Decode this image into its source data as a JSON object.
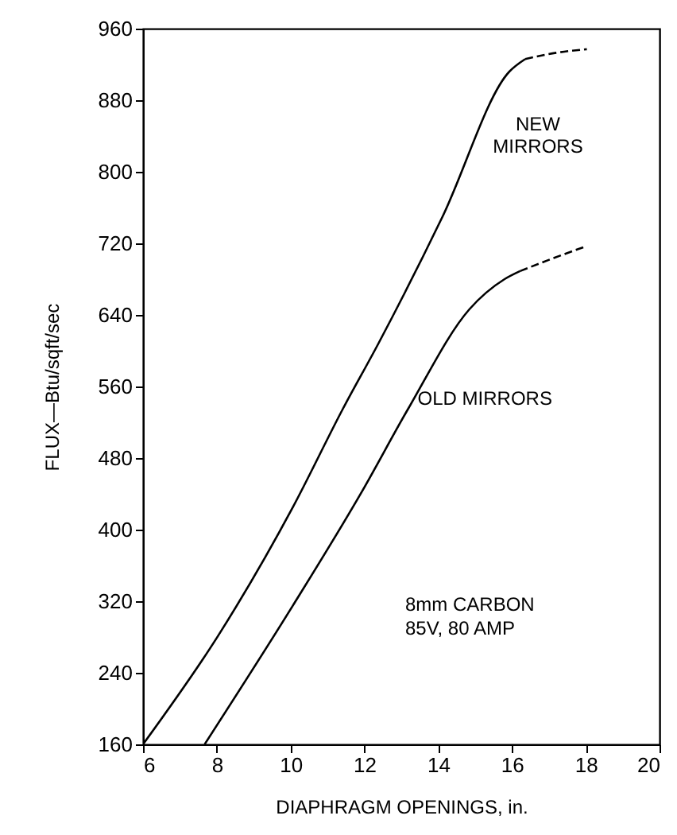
{
  "chart_data": {
    "type": "line",
    "xlabel": "DIAPHRAGM OPENINGS, in.",
    "ylabel": "FLUX—Btu/sqft/sec",
    "xlim": [
      6,
      20
    ],
    "xticks": [
      6,
      8,
      10,
      12,
      14,
      16,
      18,
      20
    ],
    "ylim": [
      160,
      960
    ],
    "yticks": [
      160,
      240,
      320,
      400,
      480,
      560,
      640,
      720,
      800,
      880,
      960
    ],
    "grid": false,
    "marker": "none",
    "annotations": [
      "8mm CARBON",
      "85V, 80 AMP"
    ],
    "series": [
      {
        "name": "NEW MIRRORS",
        "color": "#000000",
        "line_style": "solid",
        "x": [
          6,
          8.03,
          10.06,
          11.43,
          12.38,
          14.12,
          15.93,
          16.36
        ],
        "values": [
          160,
          281,
          425,
          536,
          608,
          750,
          912,
          926
        ]
      },
      {
        "color": "#000000",
        "line_style": "dashed",
        "x": [
          16.36,
          17.2,
          18.03
        ],
        "values": [
          926,
          933,
          937
        ]
      },
      {
        "name": "OLD MIRRORS",
        "color": "#000000",
        "line_style": "solid",
        "x": [
          7.67,
          10.06,
          11.94,
          13.2,
          14.84,
          15.8,
          16.22
        ],
        "values": [
          160,
          315,
          443,
          536,
          646,
          680,
          689
        ]
      },
      {
        "color": "#000000",
        "line_style": "dashed",
        "x": [
          16.22,
          17.16,
          18.03
        ],
        "values": [
          689,
          704,
          717
        ]
      }
    ]
  }
}
